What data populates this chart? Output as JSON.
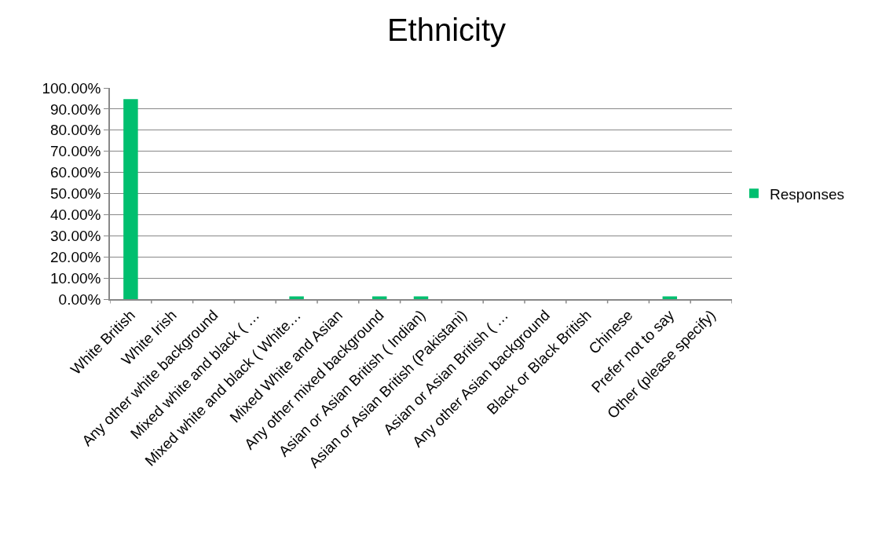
{
  "chart_data": {
    "type": "bar",
    "title": "Ethnicity",
    "categories": [
      "White British",
      "White Irish",
      "Any other white background",
      "Mixed white and black ( …",
      "Mixed white and black ( White…",
      "Mixed White and Asian",
      "Any other mixed background",
      "Asian or Asian British ( Indian)",
      "Asian or Asian British (Pakistani)",
      "Asian or Asian British ( …",
      "Any other Asian background",
      "Black or Black British",
      "Chinese",
      "Prefer not to say",
      "Other (please specify)"
    ],
    "series": [
      {
        "name": "Responses",
        "color": "#00bf6f",
        "values": [
          94.7,
          0,
          0,
          0,
          1.3,
          0,
          1.3,
          1.3,
          0,
          0,
          0,
          0,
          0,
          1.3,
          0
        ]
      }
    ],
    "ylim": [
      0,
      100
    ],
    "yticks": [
      {
        "value": 0,
        "label": "0.00%"
      },
      {
        "value": 10,
        "label": "10.00%"
      },
      {
        "value": 20,
        "label": "20.00%"
      },
      {
        "value": 30,
        "label": "30.00%"
      },
      {
        "value": 40,
        "label": "40.00%"
      },
      {
        "value": 50,
        "label": "50.00%"
      },
      {
        "value": 60,
        "label": "60.00%"
      },
      {
        "value": 70,
        "label": "70.00%"
      },
      {
        "value": 80,
        "label": "80.00%"
      },
      {
        "value": 90,
        "label": "90.00%"
      },
      {
        "value": 100,
        "label": "100.00%"
      }
    ],
    "grid": "y",
    "legend": "right"
  }
}
